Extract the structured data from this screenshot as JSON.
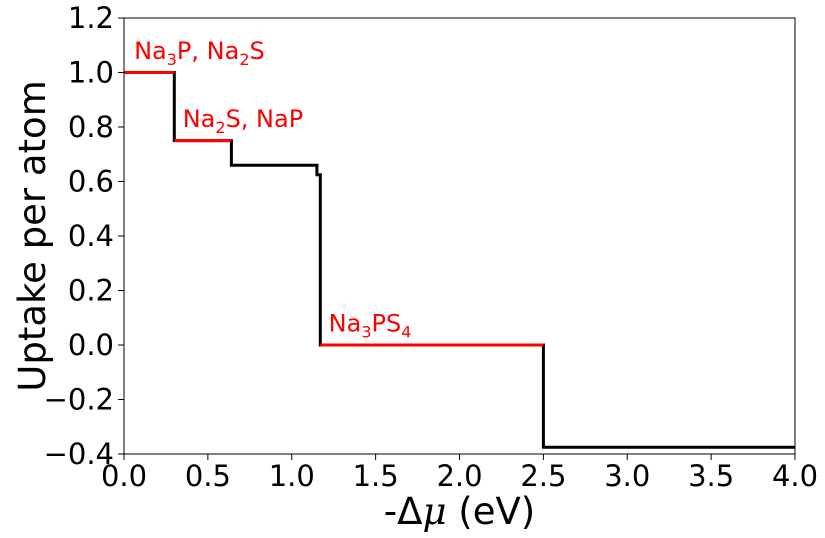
{
  "chart_data": {
    "type": "line",
    "title": "",
    "xlabel": "-Δμ (eV)",
    "xlabel_parts": {
      "prefix": "-Δ",
      "mu": "μ",
      "suffix": " (eV)"
    },
    "ylabel": "Uptake per atom",
    "xlim": [
      0.0,
      4.0
    ],
    "ylim": [
      -0.4,
      1.2
    ],
    "xticks": [
      0.0,
      0.5,
      1.0,
      1.5,
      2.0,
      2.5,
      3.0,
      3.5,
      4.0
    ],
    "xtick_labels": [
      "0.0",
      "0.5",
      "1.0",
      "1.5",
      "2.0",
      "2.5",
      "3.0",
      "3.5",
      "4.0"
    ],
    "yticks": [
      -0.4,
      -0.2,
      0.0,
      0.2,
      0.4,
      0.6,
      0.8,
      1.0,
      1.2
    ],
    "ytick_labels": [
      "−0.4",
      "−0.2",
      "0.0",
      "0.2",
      "0.4",
      "0.6",
      "0.8",
      "1.0",
      "1.2"
    ],
    "grid": false,
    "line_color": "#000000",
    "highlight_color": "#ff0000",
    "series": [
      {
        "x": [
          0.0,
          0.3,
          0.3,
          0.64,
          0.64,
          1.15,
          1.15,
          1.17,
          1.17,
          2.5,
          2.5,
          4.0
        ],
        "y": [
          1.0,
          1.0,
          0.75,
          0.75,
          0.66,
          0.66,
          0.625,
          0.625,
          0.0,
          0.0,
          -0.375,
          -0.375
        ]
      }
    ],
    "highlights": [
      {
        "x": [
          0.0,
          0.3
        ],
        "y": 1.0
      },
      {
        "x": [
          0.3,
          0.64
        ],
        "y": 0.75
      },
      {
        "x": [
          1.17,
          2.5
        ],
        "y": 0.0
      }
    ],
    "annotations": [
      {
        "x": 0.06,
        "y": 1.05,
        "parts": [
          {
            "t": "Na"
          },
          {
            "t": "3",
            "sub": true
          },
          {
            "t": "P, Na"
          },
          {
            "t": "2",
            "sub": true
          },
          {
            "t": "S"
          }
        ]
      },
      {
        "x": 0.35,
        "y": 0.8,
        "parts": [
          {
            "t": "Na"
          },
          {
            "t": "2",
            "sub": true
          },
          {
            "t": "S, NaP"
          }
        ]
      },
      {
        "x": 1.22,
        "y": 0.05,
        "parts": [
          {
            "t": "Na"
          },
          {
            "t": "3",
            "sub": true
          },
          {
            "t": "PS"
          },
          {
            "t": "4",
            "sub": true
          }
        ]
      }
    ]
  }
}
